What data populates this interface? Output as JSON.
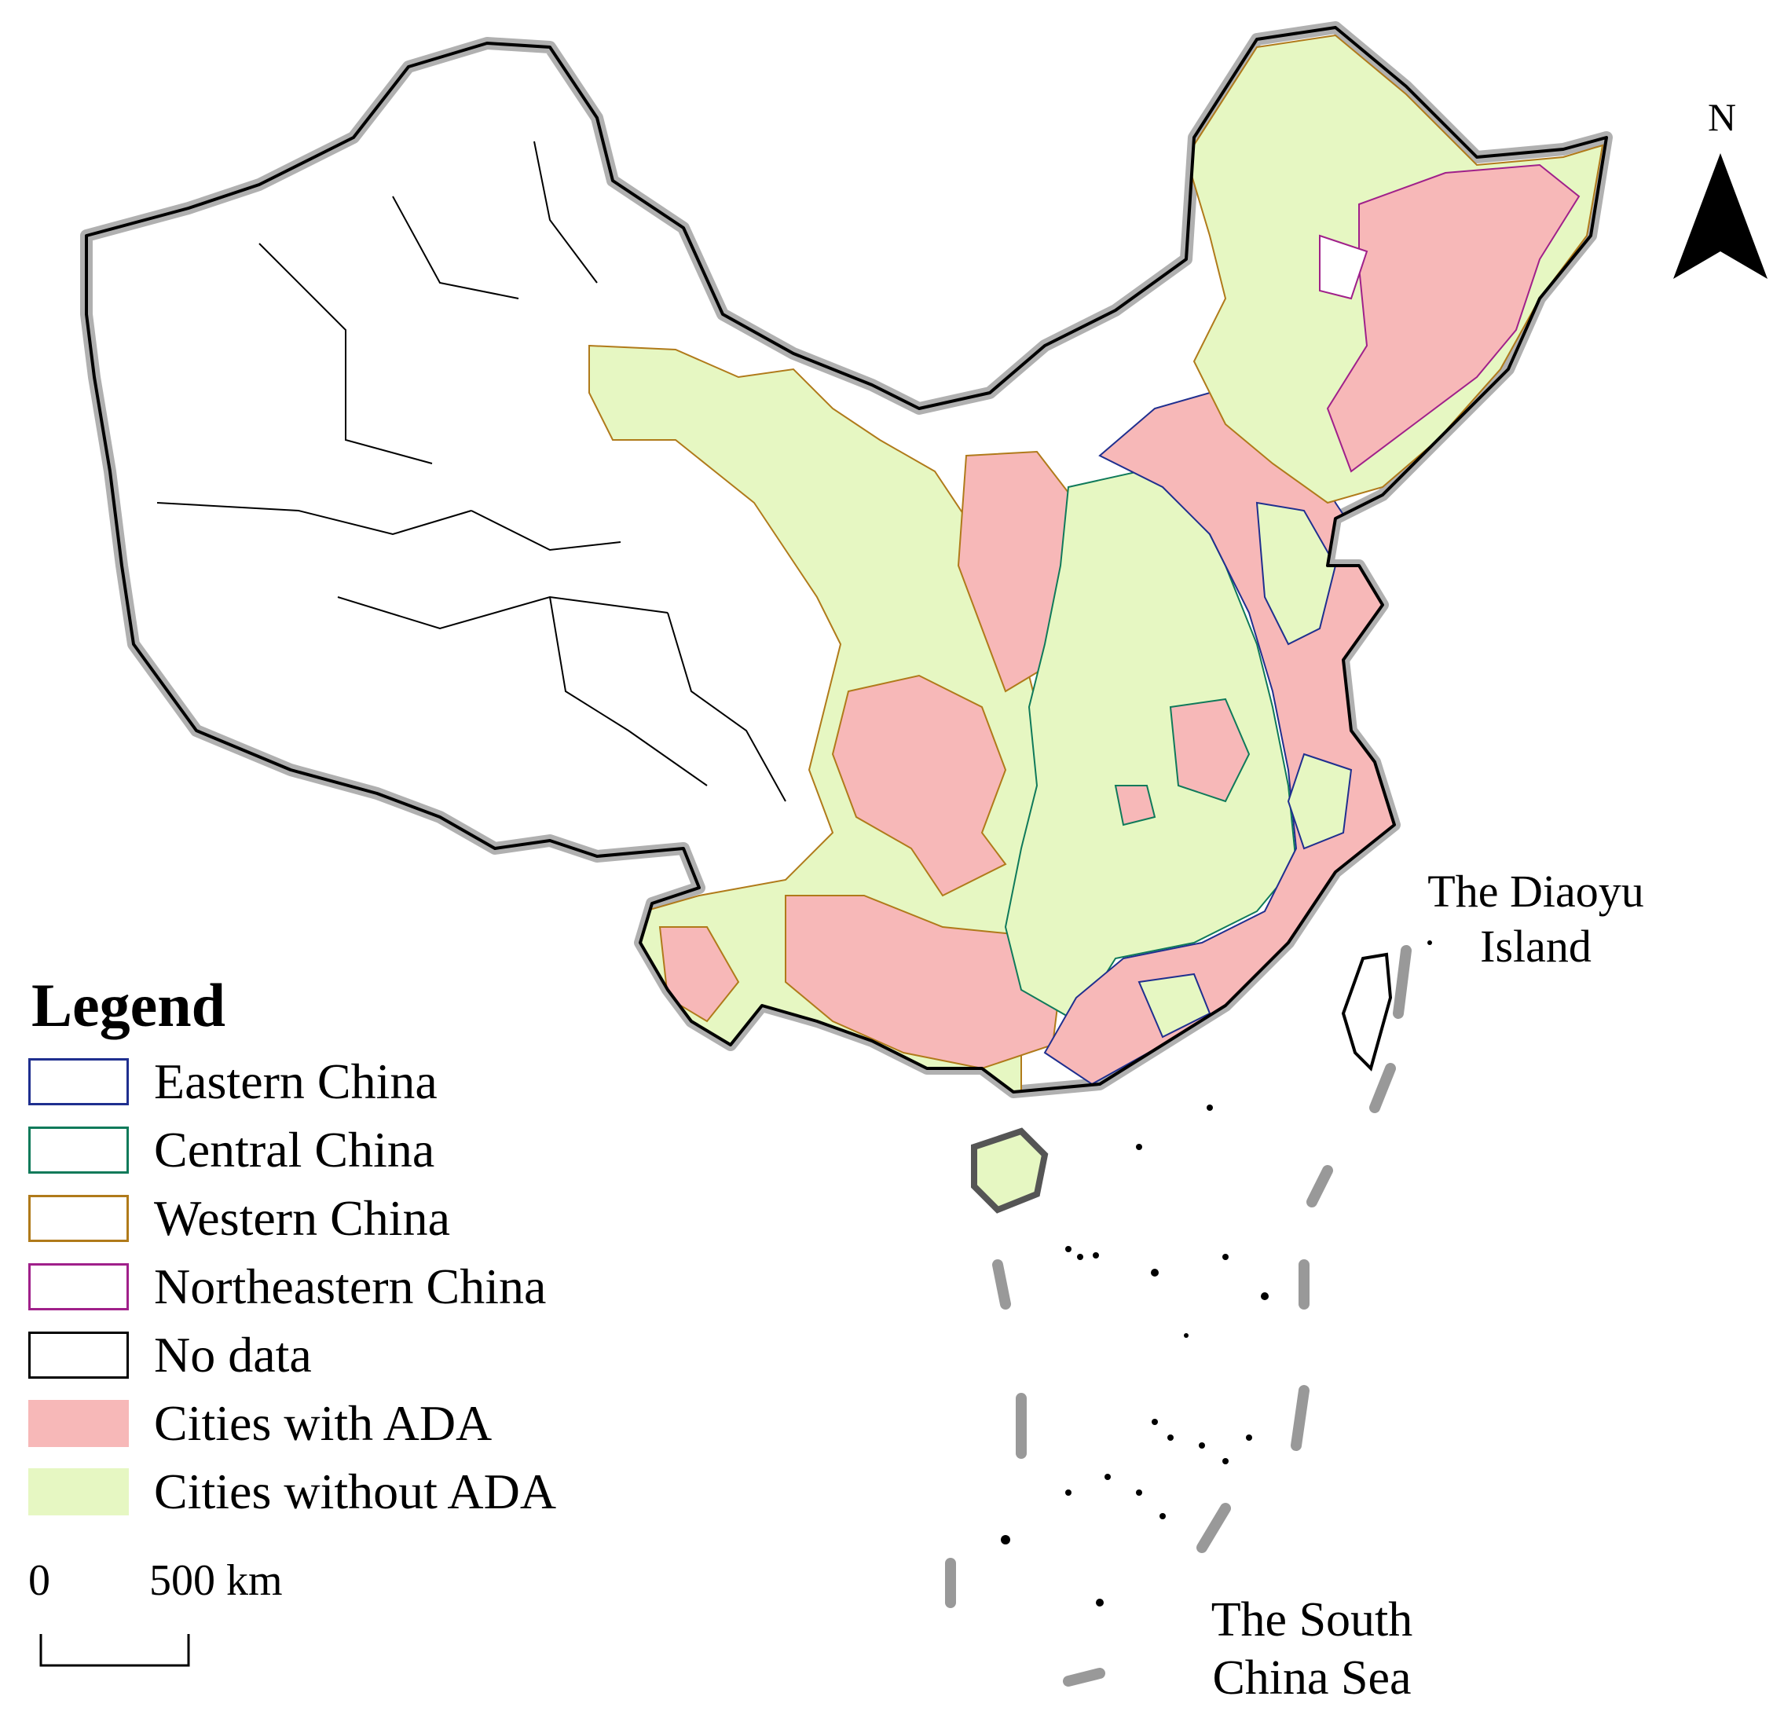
{
  "legend": {
    "title": "Legend",
    "items": [
      {
        "label": "Eastern China",
        "kind": "outline",
        "color": "#1f2f8f"
      },
      {
        "label": "Central China",
        "kind": "outline",
        "color": "#0f7a5a"
      },
      {
        "label": "Western China",
        "kind": "outline",
        "color": "#b07a1a"
      },
      {
        "label": "Northeastern China",
        "kind": "outline",
        "color": "#a0208a"
      },
      {
        "label": "No data",
        "kind": "outline",
        "color": "#000000"
      },
      {
        "label": "Cities with ADA",
        "kind": "fill",
        "color": "#f7b8b8"
      },
      {
        "label": "Cities without ADA",
        "kind": "fill",
        "color": "#e6f7c2"
      }
    ]
  },
  "scale_bar": {
    "zero": "0",
    "distance": "500 km"
  },
  "north_arrow": {
    "label": "N"
  },
  "annotations": {
    "diaoyu": "The Diaoyu Island",
    "south_china_sea": "The South China Sea"
  }
}
